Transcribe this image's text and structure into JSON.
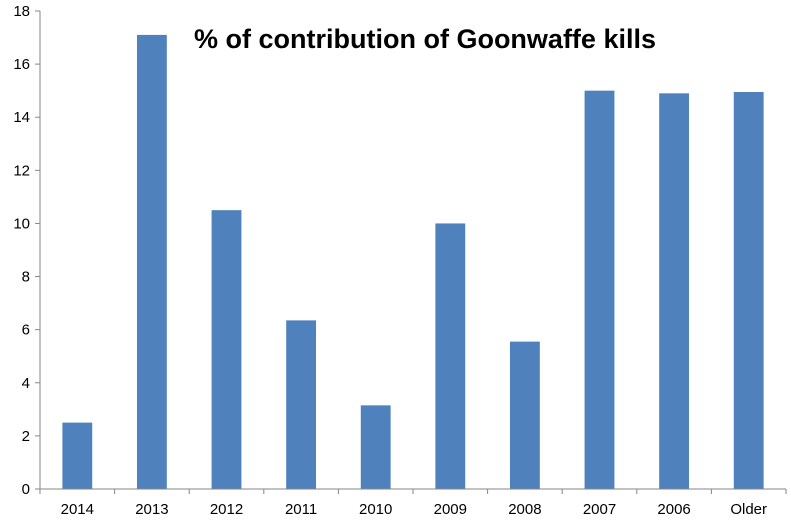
{
  "chart_data": {
    "type": "bar",
    "title": "% of contribution of Goonwaffe kills",
    "xlabel": "",
    "ylabel": "",
    "categories": [
      "2014",
      "2013",
      "2012",
      "2011",
      "2010",
      "2009",
      "2008",
      "2007",
      "2006",
      "Older"
    ],
    "values": [
      2.5,
      17.1,
      10.5,
      6.35,
      3.15,
      10.0,
      5.55,
      15.0,
      14.9,
      14.95
    ],
    "ylim": [
      0,
      18
    ],
    "yticks": [
      "0",
      "2",
      "4",
      "6",
      "8",
      "10",
      "12",
      "14",
      "16",
      "18"
    ],
    "grid": false,
    "legend": "none",
    "colors": {
      "bar": "#4f81bd",
      "axis": "#868686"
    }
  }
}
